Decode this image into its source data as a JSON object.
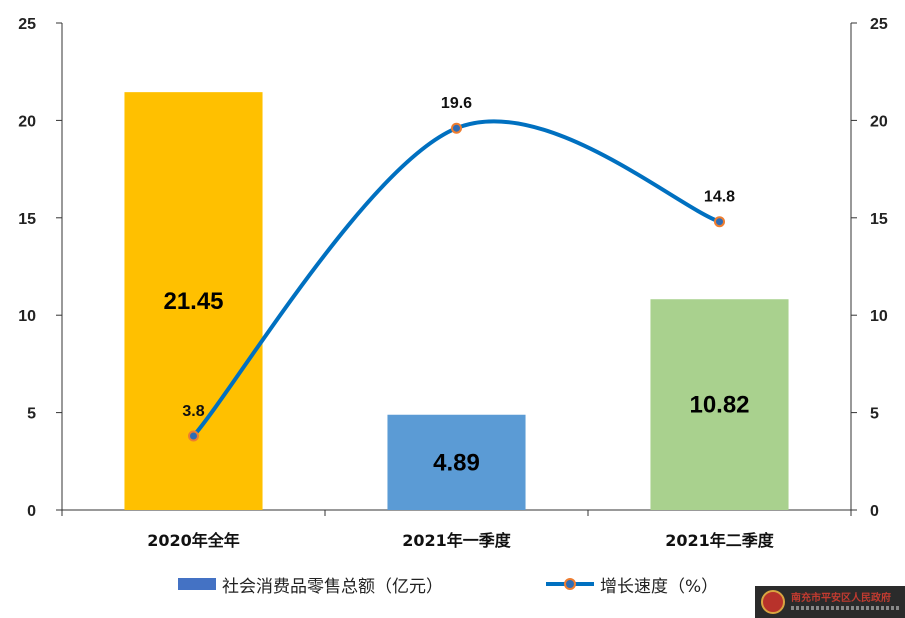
{
  "chart_data": {
    "type": "bar",
    "categories": [
      "2020年全年",
      "2021年一季度",
      "2021年二季度"
    ],
    "series": [
      {
        "name": "社会消费品零售总额（亿元）",
        "type": "bar",
        "axis": "left",
        "values": [
          21.45,
          4.89,
          10.82
        ],
        "labels": [
          "21.45",
          "4.89",
          "10.82"
        ],
        "colors": [
          "#ffc000",
          "#5b9bd5",
          "#a9d18e"
        ]
      },
      {
        "name": "增长速度（%）",
        "type": "line",
        "axis": "right",
        "smooth": true,
        "values": [
          3.8,
          19.6,
          14.8
        ],
        "labels": [
          "3.8",
          "19.6",
          "14.8"
        ],
        "color": "#0070c0",
        "marker_color": "#ed7d31"
      }
    ],
    "y_left": {
      "ylim": [
        0,
        25
      ],
      "ticks": [
        "0",
        "5",
        "10",
        "15",
        "20",
        "25"
      ]
    },
    "y_right": {
      "ylim": [
        0,
        25
      ],
      "ticks": [
        "0",
        "5",
        "10",
        "15",
        "20",
        "25"
      ]
    },
    "grid": false,
    "legend": "bottom",
    "title": "",
    "xlabel": "",
    "ylabel": ""
  },
  "legend": {
    "bar_label": "社会消费品零售总额（亿元）",
    "line_label": "增长速度（%）"
  },
  "watermark": {
    "text": "南充市平安区人民政府",
    "emblem": "national-emblem-icon"
  }
}
